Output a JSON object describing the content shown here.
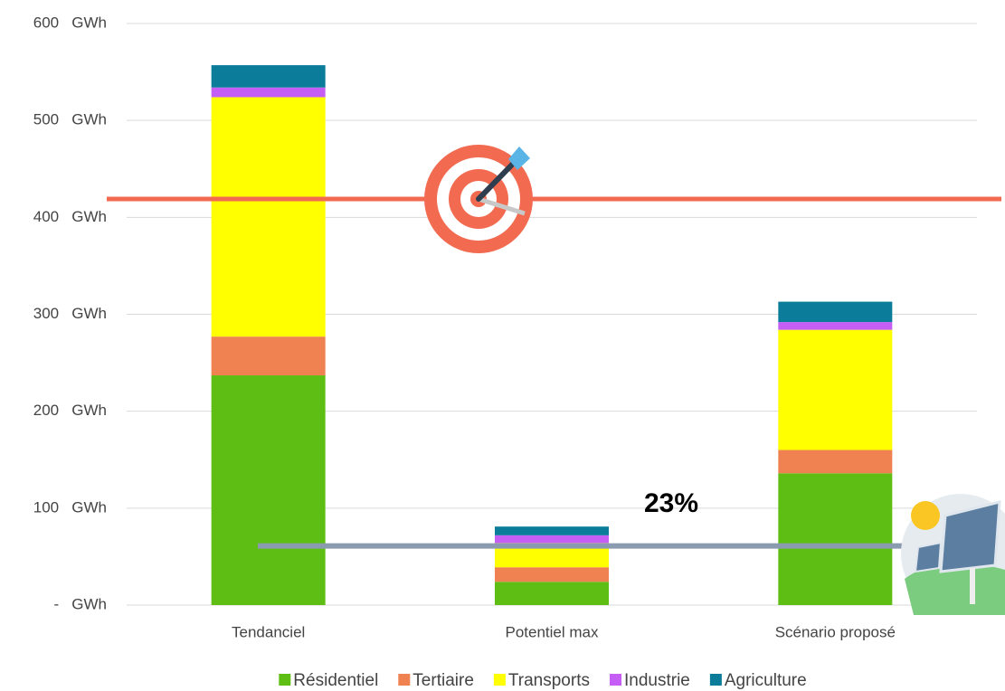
{
  "chart_data": {
    "type": "stacked_bar",
    "categories": [
      "Tendanciel",
      "Potentiel max",
      "Scénario proposé"
    ],
    "series": [
      {
        "name": "Résidentiel",
        "color": "#5fbe14",
        "values": [
          237,
          24,
          136
        ]
      },
      {
        "name": "Tertiaire",
        "color": "#ef8250",
        "values": [
          40,
          15,
          24
        ]
      },
      {
        "name": "Transports",
        "color": "#ffff00",
        "values": [
          247,
          25,
          124
        ]
      },
      {
        "name": "Industrie",
        "color": "#c45ef5",
        "values": [
          10,
          8,
          8
        ]
      },
      {
        "name": "Agriculture",
        "color": "#0b7c9a",
        "values": [
          23,
          9,
          21
        ]
      }
    ],
    "ylim": [
      0,
      600
    ],
    "yticks": [
      {
        "value": 0,
        "label": "-   GWh"
      },
      {
        "value": 100,
        "label": "100   GWh"
      },
      {
        "value": 200,
        "label": "200   GWh"
      },
      {
        "value": 300,
        "label": "300   GWh"
      },
      {
        "value": 400,
        "label": "400   GWh"
      },
      {
        "value": 500,
        "label": "500   GWh"
      },
      {
        "value": 600,
        "label": "600   GWh"
      }
    ],
    "grid": true,
    "reference_lines": [
      {
        "value": 419,
        "color": "#f26b50"
      },
      {
        "value": 61,
        "color": "#8a9bb0"
      }
    ],
    "annotations": [
      "23%"
    ],
    "legend": "bottom"
  }
}
